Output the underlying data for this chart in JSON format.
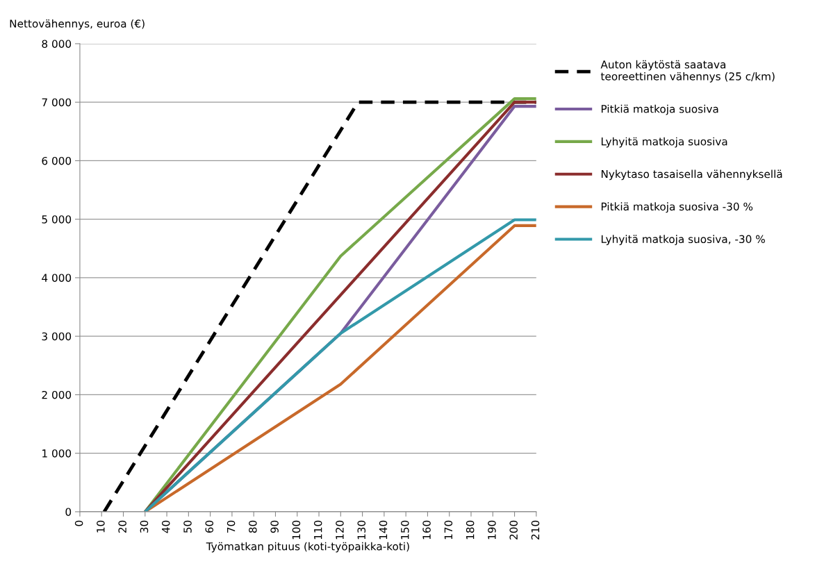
{
  "chart_data": {
    "type": "line",
    "ylabel": "Nettovähennys, euroa (€)",
    "xlabel": "Työmatkan pituus (koti-työpaikka-koti)",
    "xlim": [
      0,
      210
    ],
    "xticks": [
      0,
      10,
      20,
      30,
      40,
      50,
      60,
      70,
      80,
      90,
      100,
      110,
      120,
      130,
      140,
      150,
      160,
      170,
      180,
      190,
      200,
      210
    ],
    "ylim": [
      0,
      8000
    ],
    "yticks": [
      {
        "value": 0,
        "label": "0"
      },
      {
        "value": 1000,
        "label": "1 000"
      },
      {
        "value": 2000,
        "label": "2 000"
      },
      {
        "value": 3000,
        "label": "3 000"
      },
      {
        "value": 4000,
        "label": "4 000"
      },
      {
        "value": 5000,
        "label": "5 000"
      },
      {
        "value": 6000,
        "label": "6 000"
      },
      {
        "value": 7000,
        "label": "7 000"
      },
      {
        "value": 8000,
        "label": "8 000"
      }
    ],
    "grid": "y",
    "legend": "right",
    "marker": "none",
    "series": [
      {
        "name": "Auton käytöstä saatava\nteoreettinen vähennys (25 c/km)",
        "color": "#000000",
        "line_style": "dashed",
        "x": [
          11.2,
          128,
          210
        ],
        "values": [
          0,
          7000,
          7000
        ]
      },
      {
        "name": "Pitkiä matkoja suosiva",
        "color": "#7a5c9e",
        "line_style": "solid",
        "x": [
          30,
          120,
          200,
          210
        ],
        "values": [
          0,
          3050,
          6930,
          6930
        ]
      },
      {
        "name": "Lyhyitä matkoja suosiva",
        "color": "#77a94a",
        "line_style": "solid",
        "x": [
          30,
          120,
          200,
          210
        ],
        "values": [
          0,
          4370,
          7060,
          7060
        ]
      },
      {
        "name": "Nykytaso tasaisella vähennyksellä",
        "color": "#8b2d2d",
        "line_style": "solid",
        "x": [
          30,
          200,
          210
        ],
        "values": [
          0,
          7000,
          7000
        ]
      },
      {
        "name": "Pitkiä matkoja suosiva -30 %",
        "color": "#c8692a",
        "line_style": "solid",
        "x": [
          30,
          120,
          200,
          210
        ],
        "values": [
          0,
          2180,
          4890,
          4890
        ]
      },
      {
        "name": "Lyhyitä matkoja suosiva, -30 %",
        "color": "#3399aa",
        "line_style": "solid",
        "x": [
          30,
          120,
          200,
          210
        ],
        "values": [
          0,
          3050,
          4990,
          4990
        ]
      }
    ]
  }
}
